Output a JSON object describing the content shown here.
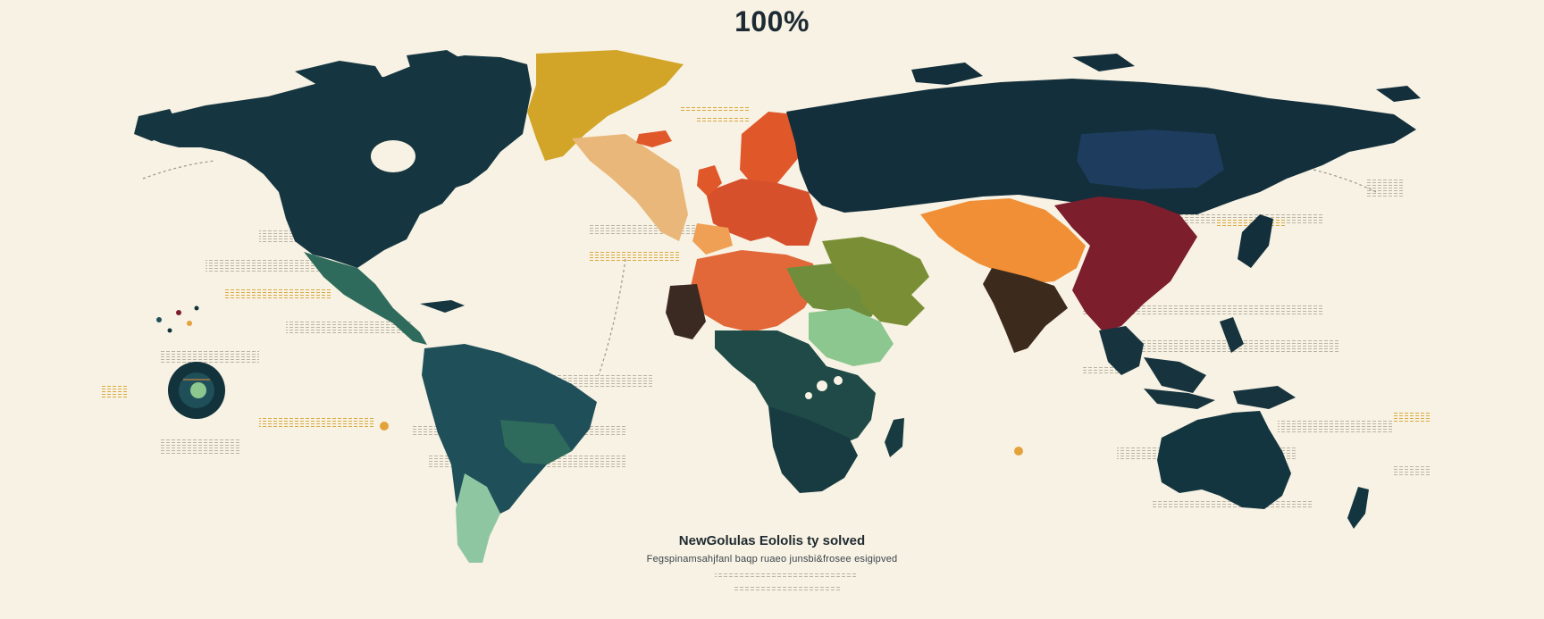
{
  "title": "100%",
  "caption": "NewGolulas Eololis ty solved",
  "subcaption": "Fegspinamsahjfanl baqp ruaeo junsbi&frosee esigipved",
  "colors": {
    "background": "#f8f2e4",
    "ocean_text": "#1d2a33",
    "land_dark": "#12333c",
    "north_america": "#153640",
    "central_america": "#2f6b5c",
    "south_america": "#1f4f59",
    "south_america_south": "#8fc6a2",
    "greenland": "#d2a528",
    "north_atlantic": "#e9b77a",
    "europe": "#e0572a",
    "west_europe": "#d7502c",
    "iberia": "#f0a055",
    "north_africa": "#e2683a",
    "west_africa": "#3b2a22",
    "sahel": "#6f8d3a",
    "east_africa": "#8cc78f",
    "central_africa": "#1f4a47",
    "southern_africa": "#173b40",
    "middle_east": "#7a8f35",
    "central_asia": "#f08f35",
    "india": "#3c2a1c",
    "china": "#7d1e2c",
    "russia": "#122f3b",
    "east_asia": "#1e3c5e",
    "southeast_asia": "#17343e",
    "australia": "#123540",
    "accent_orange": "#e4a23a"
  },
  "map_regions": [
    {
      "name": "North America",
      "color_key": "north_america"
    },
    {
      "name": "Greenland",
      "color_key": "greenland"
    },
    {
      "name": "Central America",
      "color_key": "central_america"
    },
    {
      "name": "South America",
      "color_key": "south_america"
    },
    {
      "name": "Europe",
      "color_key": "europe"
    },
    {
      "name": "North Africa",
      "color_key": "north_africa"
    },
    {
      "name": "Middle East",
      "color_key": "middle_east"
    },
    {
      "name": "Russia",
      "color_key": "russia"
    },
    {
      "name": "Central Asia",
      "color_key": "central_asia"
    },
    {
      "name": "India",
      "color_key": "india"
    },
    {
      "name": "China",
      "color_key": "china"
    },
    {
      "name": "Southeast Asia",
      "color_key": "southeast_asia"
    },
    {
      "name": "Australia",
      "color_key": "australia"
    }
  ]
}
